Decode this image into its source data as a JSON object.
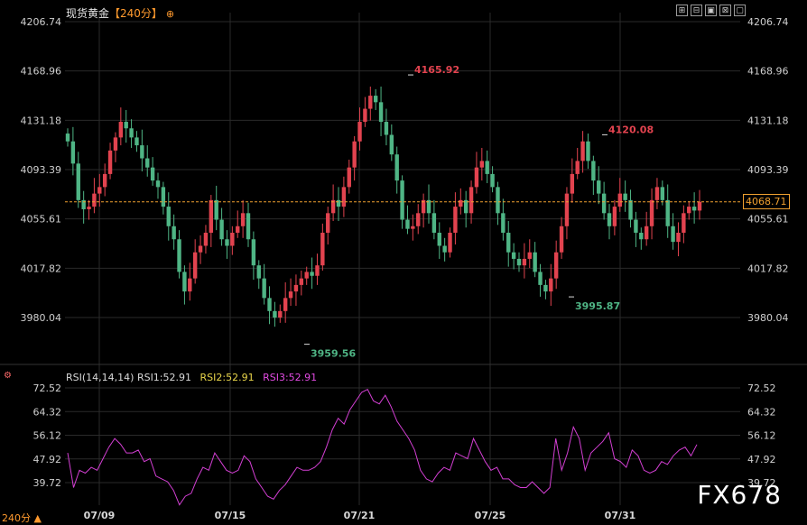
{
  "header": {
    "instrument": "现货黄金",
    "period": "【240分】",
    "toolbar": [
      "⊞",
      "⊟",
      "▣",
      "⊠",
      "▢"
    ]
  },
  "last_price_label": "4068.71",
  "rsi_header": {
    "label": "RSI(14,14,14)",
    "rsi1": "RSI1:52.91",
    "rsi2": "RSI2:52.91",
    "rsi3": "RSI3:52.91"
  },
  "footer": {
    "period_switch": "240分 ▲",
    "watermark": "FX678"
  },
  "colors": {
    "up": "#e2434f",
    "down": "#4fb585",
    "rsi": "#d33fd3",
    "last_line": "#f0a030",
    "grid": "#2a2a2a"
  },
  "chart_data": [
    {
      "type": "candlestick",
      "y_ticks": [
        "4206.74",
        "4168.96",
        "4131.18",
        "4093.39",
        "4055.61",
        "4017.82",
        "3980.04"
      ],
      "ylim": [
        3955,
        4210
      ],
      "x_ticks": [
        "07/09",
        "07/15",
        "07/21",
        "07/25",
        "07/31"
      ],
      "annotations": [
        {
          "label": "4165.92",
          "value": 4165.92,
          "kind": "high"
        },
        {
          "label": "4120.08",
          "value": 4120.08,
          "kind": "high"
        },
        {
          "label": "3959.56",
          "value": 3959.56,
          "kind": "low"
        },
        {
          "label": "3995.87",
          "value": 3995.87,
          "kind": "low"
        }
      ],
      "last_price": 4068.71,
      "closes": [
        4115,
        4098,
        4070,
        4063,
        4065,
        4075,
        4080,
        4090,
        4108,
        4118,
        4130,
        4125,
        4118,
        4112,
        4102,
        4095,
        4085,
        4080,
        4065,
        4050,
        4040,
        4015,
        4000,
        4010,
        4030,
        4035,
        4045,
        4070,
        4055,
        4040,
        4035,
        4045,
        4050,
        4060,
        4040,
        4020,
        4010,
        3995,
        3985,
        3980,
        3985,
        3995,
        4000,
        4005,
        4010,
        4015,
        4012,
        4020,
        4045,
        4060,
        4070,
        4065,
        4080,
        4095,
        4115,
        4130,
        4140,
        4150,
        4145,
        4130,
        4120,
        4105,
        4085,
        4055,
        4048,
        4050,
        4060,
        4070,
        4060,
        4045,
        4035,
        4030,
        4045,
        4065,
        4070,
        4060,
        4080,
        4095,
        4100,
        4090,
        4080,
        4060,
        4045,
        4030,
        4025,
        4020,
        4025,
        4030,
        4015,
        4005,
        4000,
        4010,
        4030,
        4050,
        4075,
        4090,
        4100,
        4115,
        4100,
        4085,
        4075,
        4060,
        4050,
        4065,
        4075,
        4070,
        4055,
        4045,
        4040,
        4050,
        4070,
        4080,
        4070,
        4050,
        4038,
        4045,
        4060,
        4065,
        4062,
        4068.71
      ]
    },
    {
      "type": "line",
      "title": "RSI(14,14,14)",
      "y_ticks": [
        "72.52",
        "64.32",
        "56.12",
        "47.92",
        "39.72"
      ],
      "ylim": [
        35,
        74
      ],
      "series": [
        {
          "name": "RSI1",
          "values": [
            50,
            38,
            44,
            43,
            45,
            44,
            48,
            52,
            55,
            53,
            50,
            50,
            51,
            47,
            48,
            42,
            41,
            40,
            37,
            32,
            35,
            36,
            41,
            45,
            44,
            50,
            47,
            44,
            43,
            44,
            49,
            47,
            41,
            38,
            35,
            34,
            37,
            39,
            42,
            45,
            44,
            44,
            45,
            47,
            52,
            58,
            62,
            60,
            65,
            68,
            71,
            72,
            68,
            67,
            70,
            66,
            61,
            58,
            55,
            51,
            44,
            41,
            40,
            43,
            45,
            44,
            50,
            49,
            48,
            55,
            51,
            47,
            44,
            45,
            41,
            41,
            39,
            38,
            38,
            40,
            38,
            36,
            38,
            55,
            44,
            50,
            59,
            55,
            44,
            50,
            52,
            54,
            57,
            48,
            47,
            45,
            51,
            49,
            44,
            43,
            44,
            47,
            46,
            49,
            51,
            52,
            49,
            52.91
          ]
        }
      ]
    }
  ]
}
